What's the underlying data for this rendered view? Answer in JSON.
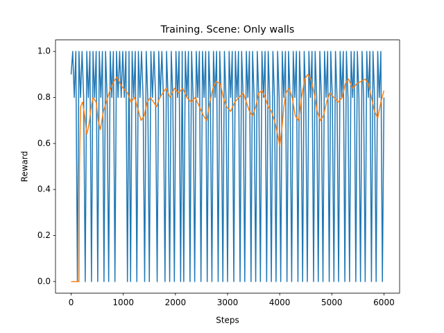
{
  "chart_data": {
    "type": "line",
    "title": "Training. Scene: Only walls",
    "x_label": "Steps",
    "y_label": "Reward",
    "xlim": [
      -300,
      6300
    ],
    "ylim": [
      -0.05,
      1.05
    ],
    "xticks": [
      0,
      1000,
      2000,
      3000,
      4000,
      5000,
      6000
    ],
    "yticks": [
      {
        "value": 0,
        "label": "0.0"
      },
      0.2,
      0.4,
      0.6,
      0.8,
      {
        "value": 1,
        "label": "1.0"
      }
    ],
    "grid": false,
    "series": [
      {
        "color": "#1f77b4",
        "x": [
          0,
          30,
          60,
          90,
          120,
          150,
          180,
          210,
          240,
          270,
          300,
          330,
          360,
          390,
          420,
          450,
          480,
          510,
          540,
          570,
          600,
          630,
          660,
          690,
          720,
          750,
          780,
          810,
          840,
          870,
          900,
          930,
          960,
          990,
          1020,
          1050,
          1080,
          1110,
          1140,
          1170,
          1200,
          1230,
          1260,
          1290,
          1320,
          1350,
          1380,
          1410,
          1440,
          1470,
          1500,
          1530,
          1560,
          1590,
          1620,
          1650,
          1680,
          1710,
          1740,
          1770,
          1800,
          1830,
          1860,
          1890,
          1920,
          1950,
          1980,
          2010,
          2040,
          2070,
          2100,
          2130,
          2160,
          2190,
          2220,
          2250,
          2280,
          2310,
          2340,
          2370,
          2400,
          2430,
          2460,
          2490,
          2520,
          2550,
          2580,
          2610,
          2640,
          2670,
          2700,
          2730,
          2760,
          2790,
          2820,
          2850,
          2880,
          2910,
          2940,
          2970,
          3000,
          3030,
          3060,
          3090,
          3120,
          3150,
          3180,
          3210,
          3240,
          3270,
          3300,
          3330,
          3360,
          3390,
          3420,
          3450,
          3480,
          3510,
          3540,
          3570,
          3600,
          3630,
          3660,
          3690,
          3720,
          3750,
          3780,
          3810,
          3840,
          3870,
          3900,
          3930,
          3960,
          3990,
          4020,
          4050,
          4080,
          4110,
          4140,
          4170,
          4200,
          4230,
          4260,
          4290,
          4320,
          4350,
          4380,
          4410,
          4440,
          4470,
          4500,
          4530,
          4560,
          4590,
          4620,
          4650,
          4680,
          4710,
          4740,
          4770,
          4800,
          4830,
          4860,
          4890,
          4920,
          4950,
          4980,
          5010,
          5040,
          5070,
          5100,
          5130,
          5160,
          5190,
          5220,
          5250,
          5280,
          5310,
          5340,
          5370,
          5400,
          5430,
          5460,
          5490,
          5520,
          5550,
          5580,
          5610,
          5640,
          5670,
          5700,
          5730,
          5760,
          5790,
          5820,
          5850,
          5880,
          5910,
          5940,
          5970,
          6000
        ],
        "values": [
          0.9,
          1,
          0.8,
          1,
          0,
          1,
          0.8,
          1,
          0.8,
          0,
          1,
          0.8,
          1,
          0,
          1,
          0.8,
          1,
          0,
          1,
          0.8,
          1,
          0,
          1,
          0.8,
          0,
          1,
          0.8,
          1,
          0,
          1,
          0.8,
          1,
          0.8,
          1,
          0.8,
          1,
          0,
          1,
          0,
          1,
          0.8,
          1,
          0,
          1,
          0.8,
          1,
          0.8,
          0,
          1,
          0.8,
          0,
          1,
          0.8,
          1,
          0.8,
          0,
          1,
          0.8,
          1,
          0.8,
          0,
          1,
          0.8,
          0,
          1,
          0.8,
          0,
          1,
          0.8,
          1,
          0,
          1,
          0,
          1,
          0.8,
          1,
          0,
          1,
          0.8,
          0,
          1,
          0.8,
          1,
          0,
          1,
          0.8,
          1,
          0,
          1,
          0.8,
          0,
          1,
          0.8,
          1,
          0,
          1,
          0.8,
          0,
          1,
          0.8,
          0,
          1,
          0.8,
          1,
          0,
          1,
          0.8,
          1,
          0,
          1,
          0.8,
          0,
          1,
          0.8,
          1,
          0,
          1,
          0.8,
          0,
          1,
          0.8,
          0,
          1,
          0.8,
          1,
          0,
          1,
          0.8,
          0,
          1,
          0.8,
          0,
          1,
          0.8,
          0,
          1,
          0.8,
          1,
          0,
          1,
          0.8,
          0,
          1,
          0.8,
          1,
          0,
          1,
          0.8,
          0,
          1,
          0.8,
          0,
          1,
          0.8,
          1,
          0,
          1,
          0.8,
          0,
          1,
          0.8,
          0,
          1,
          0.8,
          1,
          0,
          1,
          0.8,
          0,
          1,
          0.8,
          0,
          1,
          0.8,
          1,
          0,
          1,
          0.8,
          0,
          1,
          0.8,
          1,
          0,
          1,
          0.8,
          0,
          1,
          0.8,
          0,
          1,
          0.8,
          1,
          0,
          1,
          0.8,
          0,
          1,
          0.8,
          1,
          0,
          0.8
        ]
      },
      {
        "color": "#ff7f0e",
        "x": [
          0,
          60,
          120,
          150,
          160,
          180,
          220,
          260,
          300,
          340,
          380,
          420,
          480,
          520,
          560,
          620,
          700,
          760,
          820,
          880,
          940,
          1000,
          1080,
          1150,
          1220,
          1280,
          1340,
          1400,
          1460,
          1520,
          1580,
          1640,
          1700,
          1760,
          1820,
          1900,
          1980,
          2060,
          2140,
          2220,
          2300,
          2380,
          2460,
          2540,
          2600,
          2660,
          2720,
          2780,
          2860,
          2920,
          2980,
          3060,
          3140,
          3220,
          3300,
          3360,
          3420,
          3480,
          3540,
          3600,
          3660,
          3720,
          3780,
          3840,
          3900,
          3960,
          4000,
          4040,
          4080,
          4120,
          4180,
          4240,
          4300,
          4360,
          4420,
          4480,
          4540,
          4600,
          4660,
          4720,
          4780,
          4840,
          4900,
          4960,
          5040,
          5120,
          5200,
          5260,
          5320,
          5400,
          5480,
          5560,
          5640,
          5700,
          5760,
          5820,
          5880,
          5940,
          6000
        ],
        "values": [
          0,
          0,
          0,
          0,
          0.5,
          0.76,
          0.78,
          0.72,
          0.64,
          0.68,
          0.75,
          0.8,
          0.78,
          0.7,
          0.66,
          0.74,
          0.8,
          0.84,
          0.87,
          0.89,
          0.86,
          0.84,
          0.82,
          0.78,
          0.8,
          0.75,
          0.7,
          0.72,
          0.78,
          0.8,
          0.78,
          0.76,
          0.8,
          0.82,
          0.84,
          0.8,
          0.84,
          0.82,
          0.84,
          0.8,
          0.78,
          0.8,
          0.76,
          0.72,
          0.7,
          0.78,
          0.84,
          0.87,
          0.86,
          0.8,
          0.76,
          0.74,
          0.78,
          0.8,
          0.82,
          0.78,
          0.74,
          0.72,
          0.76,
          0.82,
          0.83,
          0.8,
          0.76,
          0.74,
          0.7,
          0.64,
          0.59,
          0.66,
          0.76,
          0.82,
          0.84,
          0.8,
          0.72,
          0.7,
          0.8,
          0.88,
          0.9,
          0.88,
          0.82,
          0.74,
          0.7,
          0.72,
          0.78,
          0.82,
          0.8,
          0.78,
          0.8,
          0.86,
          0.88,
          0.84,
          0.86,
          0.87,
          0.88,
          0.86,
          0.8,
          0.74,
          0.71,
          0.78,
          0.83
        ]
      }
    ]
  }
}
